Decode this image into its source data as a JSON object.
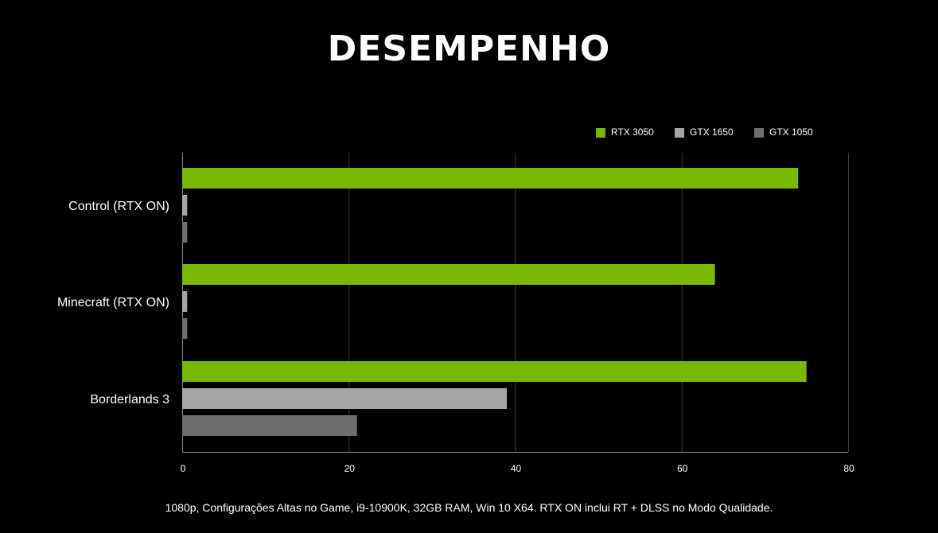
{
  "title": "DESEMPENHO",
  "footnote": "1080p, Configurações Altas no Game, i9-10900K, 32GB RAM, Win 10 X64. RTX ON inclui RT + DLSS no Modo Qualidade.",
  "colors": {
    "background": "#000000",
    "grid": "#3a3a3a",
    "axis": "#8a8a8a"
  },
  "chart_data": {
    "type": "bar",
    "orientation": "horizontal",
    "categories": [
      "Control (RTX ON)",
      "Minecraft (RTX ON)",
      "Borderlands 3"
    ],
    "series": [
      {
        "name": "RTX 3050",
        "color": "#76b900",
        "values": [
          74,
          64,
          75
        ]
      },
      {
        "name": "GTX 1650",
        "color": "#a6a6a6",
        "values": [
          0.6,
          0.6,
          39
        ]
      },
      {
        "name": "GTX 1050",
        "color": "#6e6e6e",
        "values": [
          0.6,
          0.6,
          21
        ]
      }
    ],
    "xlim": [
      0,
      80
    ],
    "xticks": [
      "0",
      "20",
      "40",
      "60",
      "80"
    ],
    "grid": true,
    "legend_position": "top-right"
  }
}
